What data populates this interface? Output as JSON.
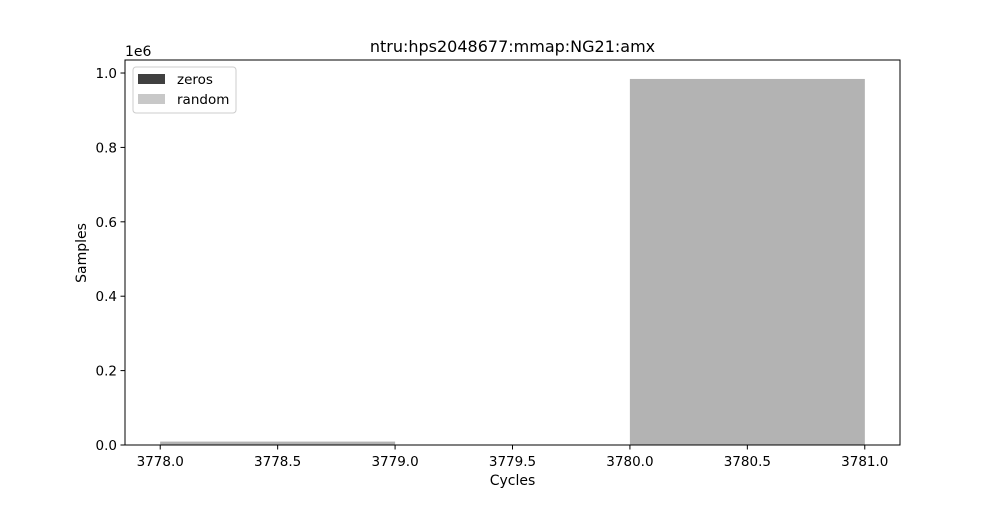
{
  "chart_data": {
    "type": "bar",
    "title": "ntru:hps2048677:mmap:NG21:amx",
    "xlabel": "Cycles",
    "ylabel": "Samples",
    "y_scale_label": "1e6",
    "xlim": [
      3777.85,
      3781.15
    ],
    "ylim": [
      0,
      1.035
    ],
    "x_ticks": [
      3778.0,
      3778.5,
      3779.0,
      3779.5,
      3780.0,
      3780.5,
      3781.0
    ],
    "x_tick_labels": [
      "3778.0",
      "3778.5",
      "3779.0",
      "3779.5",
      "3780.0",
      "3780.5",
      "3781.0"
    ],
    "y_ticks": [
      0.0,
      0.2,
      0.4,
      0.6,
      0.8,
      1.0
    ],
    "y_tick_labels": [
      "0.0",
      "0.2",
      "0.4",
      "0.6",
      "0.8",
      "1.0"
    ],
    "grid": false,
    "legend_position": "top-left",
    "series": [
      {
        "name": "zeros",
        "color": "#404040",
        "opacity": 0.5,
        "bins": [
          {
            "x0": 3778.0,
            "x1": 3779.0,
            "value": 0.009
          },
          {
            "x0": 3780.0,
            "x1": 3781.0,
            "value": 0.984
          }
        ]
      },
      {
        "name": "random",
        "color": "#c8c8c8",
        "opacity": 0.5,
        "bins": [
          {
            "x0": 3778.0,
            "x1": 3779.0,
            "value": 0.009
          },
          {
            "x0": 3780.0,
            "x1": 3781.0,
            "value": 0.984
          }
        ]
      }
    ]
  }
}
